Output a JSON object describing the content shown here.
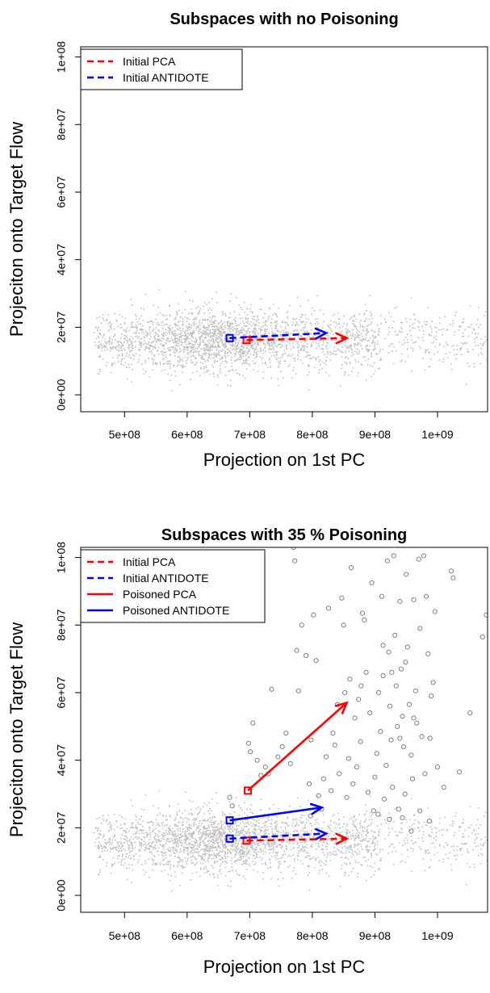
{
  "chart_data": [
    {
      "type": "scatter",
      "title": "Subspaces with no Poisoning",
      "xlabel": "Projection on 1st PC",
      "ylabel": "Projeciton onto Target Flow",
      "xlim": [
        430000000,
        1080000000
      ],
      "ylim": [
        -5000000,
        103000000
      ],
      "x_ticks": [
        500000000,
        600000000,
        700000000,
        800000000,
        900000000,
        1000000000
      ],
      "x_tick_labels": [
        "5e+08",
        "6e+08",
        "7e+08",
        "8e+08",
        "9e+08",
        "1e+09"
      ],
      "y_ticks": [
        0,
        20000000,
        40000000,
        60000000,
        80000000,
        100000000
      ],
      "y_tick_labels": [
        "0e+00",
        "2e+07",
        "4e+07",
        "6e+07",
        "8e+07",
        "1e+08"
      ],
      "legend_position": "top-left",
      "legend": [
        {
          "label": "Initial PCA",
          "color": "#ff0000",
          "style": "dashed"
        },
        {
          "label": "Initial ANTIDOTE",
          "color": "#0000ff",
          "style": "dashed"
        }
      ],
      "arrows": [
        {
          "series": "Initial PCA",
          "x0": 695000000,
          "y0": 16200000,
          "x1": 855000000,
          "y1": 16800000,
          "color": "#ff0000",
          "style": "dashed"
        },
        {
          "series": "Initial ANTIDOTE",
          "x0": 668000000,
          "y0": 16800000,
          "x1": 822000000,
          "y1": 18300000,
          "color": "#0000ff",
          "style": "dashed"
        }
      ],
      "normal_points": {
        "x_range": [
          450000000,
          1080000000
        ],
        "y_center": 16500000,
        "y_spread": 4500000,
        "count": 2600,
        "color": "#bebebe"
      },
      "poison_points": []
    },
    {
      "type": "scatter",
      "title": "Subspaces with 35 % Poisoning",
      "xlabel": "Projection on 1st PC",
      "ylabel": "Projeciton onto Target Flow",
      "xlim": [
        430000000,
        1080000000
      ],
      "ylim": [
        -5000000,
        103000000
      ],
      "x_ticks": [
        500000000,
        600000000,
        700000000,
        800000000,
        900000000,
        1000000000
      ],
      "x_tick_labels": [
        "5e+08",
        "6e+08",
        "7e+08",
        "8e+08",
        "9e+08",
        "1e+09"
      ],
      "y_ticks": [
        0,
        20000000,
        40000000,
        60000000,
        80000000,
        100000000
      ],
      "y_tick_labels": [
        "0e+00",
        "2e+07",
        "4e+07",
        "6e+07",
        "8e+07",
        "1e+08"
      ],
      "legend_position": "top-left",
      "legend": [
        {
          "label": "Initial PCA",
          "color": "#ff0000",
          "style": "dashed"
        },
        {
          "label": "Initial ANTIDOTE",
          "color": "#0000ff",
          "style": "dashed"
        },
        {
          "label": "Poisoned PCA",
          "color": "#ff0000",
          "style": "solid"
        },
        {
          "label": "Poisoned ANTIDOTE",
          "color": "#0000ff",
          "style": "solid"
        }
      ],
      "arrows": [
        {
          "series": "Initial PCA",
          "x0": 695000000,
          "y0": 16200000,
          "x1": 855000000,
          "y1": 16800000,
          "color": "#ff0000",
          "style": "dashed"
        },
        {
          "series": "Initial ANTIDOTE",
          "x0": 668000000,
          "y0": 16800000,
          "x1": 822000000,
          "y1": 18300000,
          "color": "#0000ff",
          "style": "dashed"
        },
        {
          "series": "Poisoned PCA",
          "x0": 697000000,
          "y0": 31000000,
          "x1": 855000000,
          "y1": 57000000,
          "color": "#ff0000",
          "style": "solid"
        },
        {
          "series": "Poisoned ANTIDOTE",
          "x0": 668000000,
          "y0": 22200000,
          "x1": 815000000,
          "y1": 26000000,
          "color": "#0000ff",
          "style": "solid"
        }
      ],
      "normal_points": {
        "x_range": [
          450000000,
          1080000000
        ],
        "y_center": 16500000,
        "y_spread": 4500000,
        "count": 2600,
        "color": "#bebebe"
      },
      "poison_points": [
        [
          668000000,
          29000000
        ],
        [
          672000000,
          26500000
        ],
        [
          698000000,
          45000000
        ],
        [
          701000000,
          42500000
        ],
        [
          705000000,
          51000000
        ],
        [
          712000000,
          40000000
        ],
        [
          718000000,
          35500000
        ],
        [
          725000000,
          38000000
        ],
        [
          730000000,
          36000000
        ],
        [
          735000000,
          61000000
        ],
        [
          745000000,
          41000000
        ],
        [
          752000000,
          44000000
        ],
        [
          758000000,
          48000000
        ],
        [
          765000000,
          39000000
        ],
        [
          770000000,
          103000000
        ],
        [
          772000000,
          99000000
        ],
        [
          775000000,
          72500000
        ],
        [
          778000000,
          60500000
        ],
        [
          783000000,
          80000000
        ],
        [
          790000000,
          71000000
        ],
        [
          795000000,
          33000000
        ],
        [
          798000000,
          46000000
        ],
        [
          802000000,
          83000000
        ],
        [
          806000000,
          69500000
        ],
        [
          810000000,
          29500000
        ],
        [
          815000000,
          25500000
        ],
        [
          818000000,
          34500000
        ],
        [
          822000000,
          41000000
        ],
        [
          826000000,
          85000000
        ],
        [
          830000000,
          31000000
        ],
        [
          833000000,
          48000000
        ],
        [
          836000000,
          44500000
        ],
        [
          840000000,
          56500000
        ],
        [
          843000000,
          36000000
        ],
        [
          847000000,
          88000000
        ],
        [
          850000000,
          80000000
        ],
        [
          852000000,
          60000000
        ],
        [
          855000000,
          29000000
        ],
        [
          858000000,
          40500000
        ],
        [
          862000000,
          97000000
        ],
        [
          865000000,
          33000000
        ],
        [
          868000000,
          52500000
        ],
        [
          871000000,
          38000000
        ],
        [
          874000000,
          58000000
        ],
        [
          877000000,
          45500000
        ],
        [
          880000000,
          83500000
        ],
        [
          883000000,
          81500000
        ],
        [
          886000000,
          66000000
        ],
        [
          889000000,
          30500000
        ],
        [
          892000000,
          54000000
        ],
        [
          895000000,
          92500000
        ],
        [
          898000000,
          25000000
        ],
        [
          900000000,
          35000000
        ],
        [
          903000000,
          42000000
        ],
        [
          906000000,
          60000000
        ],
        [
          909000000,
          48500000
        ],
        [
          911000000,
          88500000
        ],
        [
          913000000,
          65000000
        ],
        [
          915000000,
          28500000
        ],
        [
          918000000,
          38500000
        ],
        [
          920000000,
          99000000
        ],
        [
          922000000,
          72000000
        ],
        [
          924000000,
          56000000
        ],
        [
          926000000,
          46000000
        ],
        [
          928000000,
          32000000
        ],
        [
          930000000,
          100500000
        ],
        [
          932000000,
          77000000
        ],
        [
          934000000,
          62000000
        ],
        [
          936000000,
          50000000
        ],
        [
          938000000,
          25500000
        ],
        [
          940000000,
          87000000
        ],
        [
          942000000,
          67000000
        ],
        [
          944000000,
          53000000
        ],
        [
          946000000,
          44000000
        ],
        [
          948000000,
          30000000
        ],
        [
          950000000,
          95000000
        ],
        [
          952000000,
          73500000
        ],
        [
          955000000,
          56500000
        ],
        [
          958000000,
          41500000
        ],
        [
          960000000,
          34500000
        ],
        [
          962000000,
          87500000
        ],
        [
          965000000,
          60500000
        ],
        [
          967000000,
          51000000
        ],
        [
          970000000,
          99500000
        ],
        [
          972000000,
          79000000
        ],
        [
          975000000,
          47000000
        ],
        [
          978000000,
          100500000
        ],
        [
          980000000,
          36000000
        ],
        [
          982000000,
          88500000
        ],
        [
          985000000,
          71500000
        ],
        [
          988000000,
          46500000
        ],
        [
          990000000,
          59000000
        ],
        [
          993000000,
          63000000
        ],
        [
          996000000,
          84000000
        ],
        [
          1000000000,
          38000000
        ],
        [
          1010000000,
          32000000
        ],
        [
          1022000000,
          96000000
        ],
        [
          1025000000,
          94000000
        ],
        [
          1052000000,
          54000000
        ],
        [
          1072000000,
          76500000
        ],
        [
          1078000000,
          83000000
        ],
        [
          1035000000,
          36500000
        ],
        [
          958000000,
          19000000
        ],
        [
          944000000,
          23000000
        ],
        [
          923000000,
          22500000
        ],
        [
          905000000,
          24000000
        ],
        [
          972000000,
          25000000
        ],
        [
          987000000,
          22000000
        ],
        [
          927000000,
          66000000
        ],
        [
          913000000,
          74000000
        ],
        [
          949000000,
          69000000
        ],
        [
          797000000,
          23500000
        ],
        [
          860000000,
          64000000
        ],
        [
          878000000,
          62000000
        ],
        [
          940000000,
          46500000
        ],
        [
          962000000,
          52500000
        ]
      ]
    }
  ]
}
